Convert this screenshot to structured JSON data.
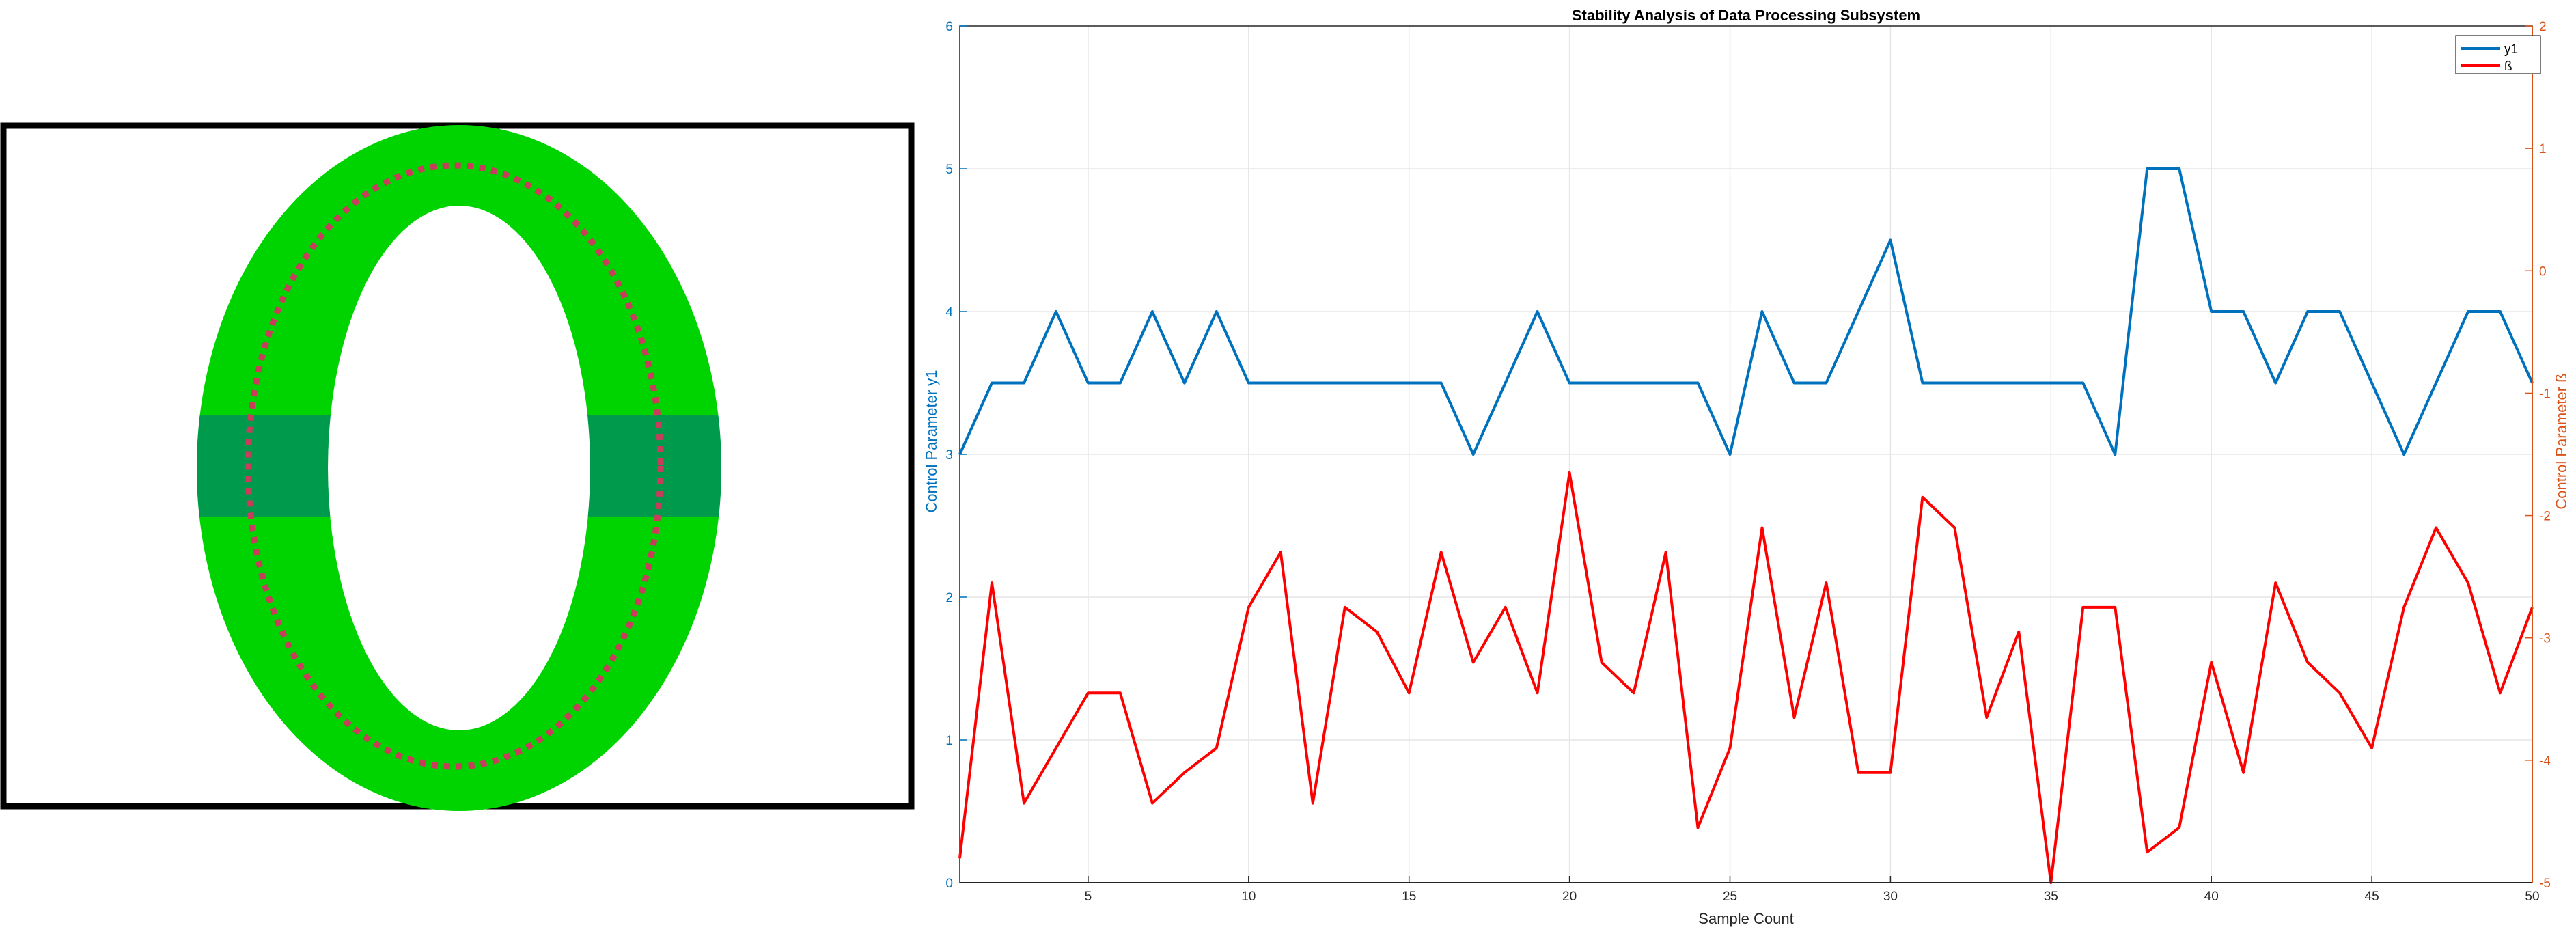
{
  "colors": {
    "ring_outer": "#00d400",
    "ring_band": "#009a4d",
    "ring_dotted": "#c83c5c",
    "frame": "#000000",
    "series_y1": "#0072bd",
    "series_beta": "#ff0000",
    "left_axis": "#0072bd",
    "right_axis": "#d95319",
    "grid": "#e6e6e6"
  },
  "chart_data": {
    "type": "line",
    "title": "Stability Analysis of Data Processing Subsystem",
    "xlabel": "Sample Count",
    "ylabel_left": "Control Parameter y1",
    "ylabel_right": "Control Parameter ß",
    "xlim": [
      1,
      50
    ],
    "ylim_left": [
      0,
      6
    ],
    "ylim_right": [
      -5,
      2
    ],
    "x_ticks": [
      5,
      10,
      15,
      20,
      25,
      30,
      35,
      40,
      45,
      50
    ],
    "y_ticks_left": [
      0,
      1,
      2,
      3,
      4,
      5,
      6
    ],
    "y_ticks_right": [
      -5,
      -4,
      -3,
      -2,
      -1,
      0,
      1,
      2
    ],
    "grid": true,
    "legend_position": "top-right",
    "x": [
      1,
      2,
      3,
      4,
      5,
      6,
      7,
      8,
      9,
      10,
      11,
      12,
      13,
      14,
      15,
      16,
      17,
      18,
      19,
      20,
      21,
      22,
      23,
      24,
      25,
      26,
      27,
      28,
      29,
      30,
      31,
      32,
      33,
      34,
      35,
      36,
      37,
      38,
      39,
      40,
      41,
      42,
      43,
      44,
      45,
      46,
      47,
      48,
      49,
      50
    ],
    "series": [
      {
        "name": "y1",
        "axis": "left",
        "values": [
          3,
          3.5,
          3.5,
          4,
          3.5,
          3.5,
          4,
          3.5,
          4,
          3.5,
          3.5,
          3.5,
          3.5,
          3.5,
          3.5,
          3.5,
          3,
          3.5,
          4,
          3.5,
          3.5,
          3.5,
          3.5,
          3.5,
          3,
          4,
          3.5,
          3.5,
          4,
          4.5,
          3.5,
          3.5,
          3.5,
          3.5,
          3.5,
          3.5,
          3,
          5,
          5,
          4,
          4,
          3.5,
          4,
          4,
          3.5,
          3,
          3.5,
          4,
          4,
          3.5
        ]
      },
      {
        "name": "ß",
        "axis": "right",
        "values": [
          -4.8,
          -2.55,
          -4.35,
          -3.9,
          -3.45,
          -3.45,
          -4.35,
          -4.1,
          -3.9,
          -2.75,
          -2.3,
          -4.35,
          -2.75,
          -2.95,
          -3.45,
          -2.3,
          -3.2,
          -2.75,
          -3.45,
          -1.65,
          -3.2,
          -3.45,
          -2.3,
          -4.55,
          -3.9,
          -2.1,
          -3.65,
          -2.55,
          -4.1,
          -4.1,
          -1.85,
          -2.1,
          -3.65,
          -2.95,
          -5,
          -2.75,
          -2.75,
          -4.75,
          -4.55,
          -3.2,
          -4.1,
          -2.55,
          -3.2,
          -3.45,
          -3.9,
          -2.75,
          -2.1,
          -2.55,
          -3.45,
          -2.75
        ]
      }
    ]
  }
}
